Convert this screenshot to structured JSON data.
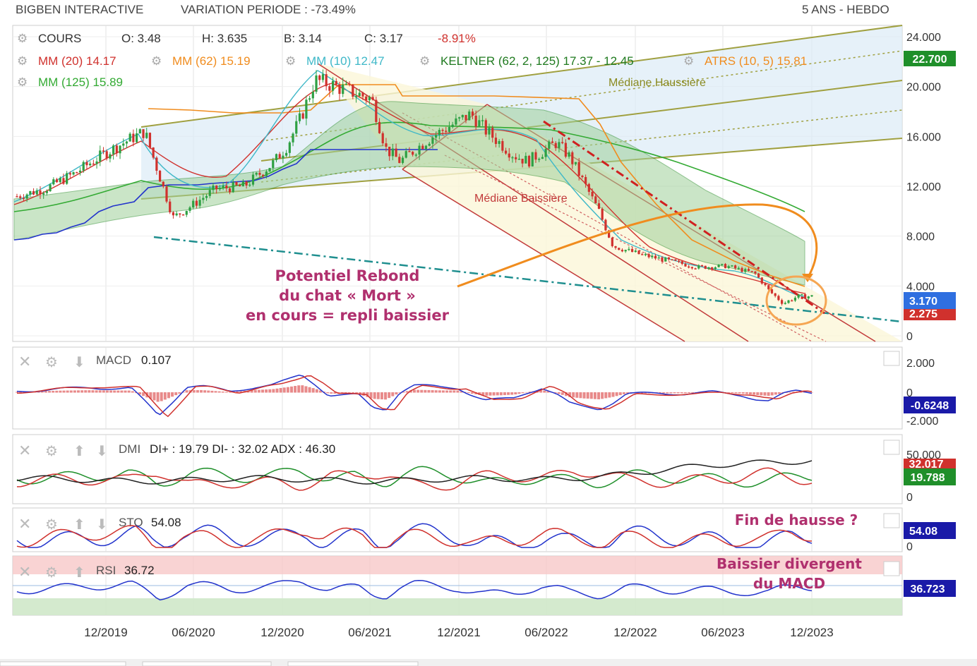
{
  "header": {
    "ticker": "BIGBEN INTERACTIVE",
    "variation": "VARIATION PERIODE : -73.49%",
    "period": "5 ANS - HEBDO"
  },
  "legend": {
    "cours": "COURS",
    "open": "O: 3.48",
    "high": "H: 3.635",
    "low": "B: 3.14",
    "close": "C: 3.17",
    "change": "-8.91%",
    "mm20": "MM (20)  14.17",
    "mm62": "MM (62)  15.19",
    "mm10": "MM (10)  12.47",
    "keltner": "KELTNER (62, 2, 125)  17.37 - 12.45",
    "atrs": "ATRS (10, 5)  15.81",
    "mm125": "MM (125)  15.89"
  },
  "colors": {
    "candle_up": "#2ea043",
    "candle_down": "#d0312d",
    "mm20": "#d0312d",
    "mm62": "#f08c1e",
    "mm10": "#3fb8c8",
    "keltner": "#2f8f2f",
    "atrs": "#f08c1e",
    "mm125": "#33aa33",
    "annotation": "#b0306e",
    "badge_blue": "#2f6fe0",
    "badge_red": "#d0312d",
    "badge_green": "#1f8f2a",
    "badge_navy": "#1a1aa8"
  },
  "annotations": {
    "mediane_haussiere": "Médiane Haussière",
    "mediane_baissiere": "Médiane Baissière",
    "rebond_1": "Potentiel Rebond",
    "rebond_2": "du chat « Mort »",
    "rebond_3": "en cours = repli baissier",
    "fin_hausse": "Fin de hausse ?",
    "divergent_1": "Baissier divergent",
    "divergent_2": "du MACD"
  },
  "chart_data": [
    {
      "type": "line",
      "name": "price",
      "x_ticks": [
        "12/2019",
        "06/2020",
        "12/2020",
        "06/2021",
        "12/2021",
        "06/2022",
        "12/2022",
        "06/2023",
        "12/2023"
      ],
      "y_ticks": [
        "24.000",
        "20.000",
        "16.000",
        "12.000",
        "8.000",
        "4.000",
        "0"
      ],
      "ylim": [
        0,
        24
      ],
      "badges": [
        "22.700",
        "3.170",
        "2.275"
      ],
      "series": [
        {
          "name": "COURS",
          "x": [
            "2019-04",
            "2019-06",
            "2019-08",
            "2019-10",
            "2019-12",
            "2020-01",
            "2020-03",
            "2020-04",
            "2020-06",
            "2020-08",
            "2020-10",
            "2020-11",
            "2020-12",
            "2021-01",
            "2021-02",
            "2021-03",
            "2021-05",
            "2021-06",
            "2021-07",
            "2021-09",
            "2021-10",
            "2021-12",
            "2022-01",
            "2022-03",
            "2022-04",
            "2022-06",
            "2022-07",
            "2022-09",
            "2022-10",
            "2022-12",
            "2023-02",
            "2023-04",
            "2023-06",
            "2023-08",
            "2023-09",
            "2023-10",
            "2023-11"
          ],
          "values": [
            11.2,
            11.8,
            13.0,
            14.5,
            15.8,
            16.4,
            9.5,
            10.2,
            11.8,
            12.0,
            13.8,
            15.2,
            17.5,
            20.5,
            20.2,
            19.8,
            19.0,
            15.0,
            14.0,
            15.8,
            16.5,
            17.8,
            16.5,
            14.5,
            14.0,
            15.5,
            14.3,
            10.0,
            7.2,
            6.5,
            6.0,
            5.5,
            5.6,
            5.0,
            3.6,
            2.6,
            3.17
          ]
        }
      ]
    },
    {
      "type": "line",
      "name": "MACD",
      "label": "MACD",
      "value": "0.107",
      "y_ticks": [
        "2.000",
        "0",
        "-2.000"
      ],
      "badge": "-0.6248"
    },
    {
      "type": "line",
      "name": "DMI",
      "label": "DMI",
      "value": "DI+ : 19.79 DI- : 32.02 ADX : 46.30",
      "y_ticks": [
        "50.000",
        "0"
      ],
      "badges": [
        "32.017",
        "19.788"
      ]
    },
    {
      "type": "line",
      "name": "STO",
      "label": "STO",
      "value": "54.08",
      "y_ticks": [
        "0"
      ],
      "badge": "54.08"
    },
    {
      "type": "line",
      "name": "RSI",
      "label": "RSI",
      "value": "36.72",
      "badge": "36.723"
    }
  ]
}
